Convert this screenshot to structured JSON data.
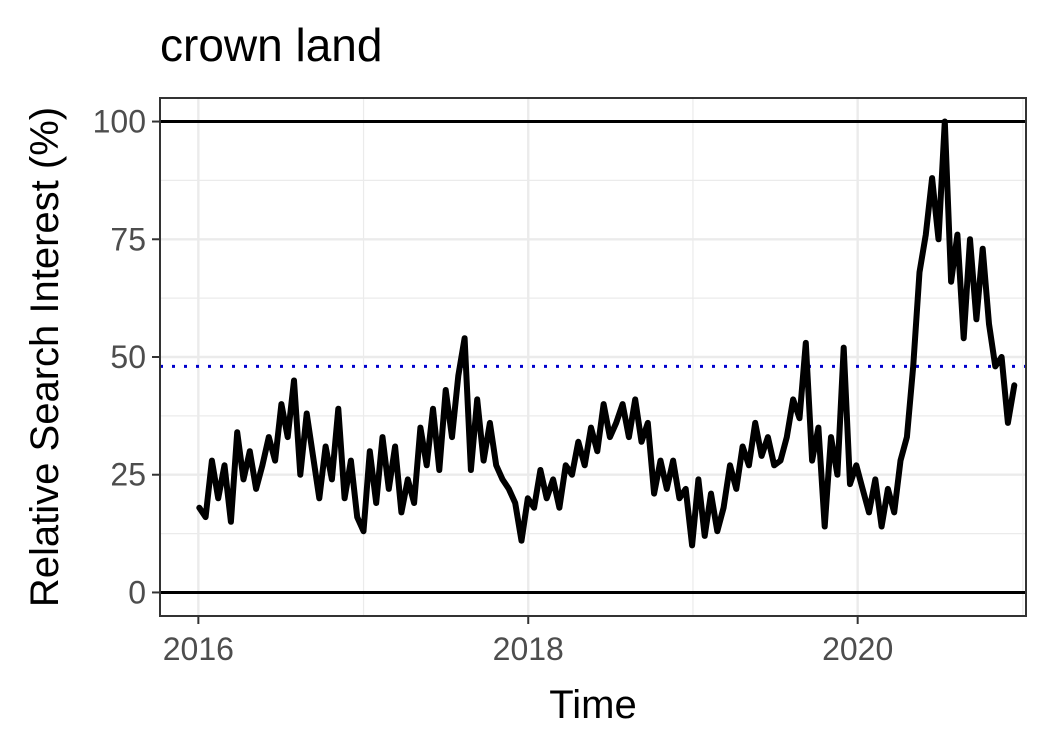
{
  "chart_data": {
    "type": "line",
    "title": "crown land",
    "xlabel": "Time",
    "ylabel": "Relative Search Interest (%)",
    "xlim": [
      "2015-10-08",
      "2021-01-08"
    ],
    "ylim": [
      -5,
      105
    ],
    "x_ticks": [
      "2016",
      "2018",
      "2020"
    ],
    "y_ticks": [
      0,
      25,
      50,
      75,
      100
    ],
    "grid": true,
    "reference_lines": [
      {
        "kind": "hline",
        "y": 0,
        "style": "solid",
        "color": "#000000"
      },
      {
        "kind": "hline",
        "y": 100,
        "style": "solid",
        "color": "#000000"
      },
      {
        "kind": "hline",
        "y": 48,
        "style": "dotted",
        "color": "#0000cc"
      }
    ],
    "series": [
      {
        "color": "#000000",
        "points": [
          [
            "2016-01-03",
            18
          ],
          [
            "2016-01-17",
            16
          ],
          [
            "2016-01-31",
            28
          ],
          [
            "2016-02-14",
            20
          ],
          [
            "2016-02-28",
            27
          ],
          [
            "2016-03-13",
            15
          ],
          [
            "2016-03-27",
            34
          ],
          [
            "2016-04-10",
            24
          ],
          [
            "2016-04-24",
            30
          ],
          [
            "2016-05-08",
            22
          ],
          [
            "2016-05-22",
            27
          ],
          [
            "2016-06-05",
            33
          ],
          [
            "2016-06-19",
            28
          ],
          [
            "2016-07-03",
            40
          ],
          [
            "2016-07-17",
            33
          ],
          [
            "2016-07-31",
            45
          ],
          [
            "2016-08-14",
            25
          ],
          [
            "2016-08-28",
            38
          ],
          [
            "2016-09-11",
            29
          ],
          [
            "2016-09-25",
            20
          ],
          [
            "2016-10-09",
            31
          ],
          [
            "2016-10-23",
            24
          ],
          [
            "2016-11-06",
            39
          ],
          [
            "2016-11-20",
            20
          ],
          [
            "2016-12-04",
            28
          ],
          [
            "2016-12-18",
            16
          ],
          [
            "2017-01-01",
            13
          ],
          [
            "2017-01-15",
            30
          ],
          [
            "2017-01-29",
            19
          ],
          [
            "2017-02-12",
            33
          ],
          [
            "2017-02-26",
            22
          ],
          [
            "2017-03-12",
            31
          ],
          [
            "2017-03-26",
            17
          ],
          [
            "2017-04-09",
            24
          ],
          [
            "2017-04-23",
            19
          ],
          [
            "2017-05-07",
            35
          ],
          [
            "2017-05-21",
            27
          ],
          [
            "2017-06-04",
            39
          ],
          [
            "2017-06-18",
            26
          ],
          [
            "2017-07-02",
            43
          ],
          [
            "2017-07-16",
            33
          ],
          [
            "2017-07-30",
            46
          ],
          [
            "2017-08-13",
            54
          ],
          [
            "2017-08-27",
            26
          ],
          [
            "2017-09-10",
            41
          ],
          [
            "2017-09-24",
            28
          ],
          [
            "2017-10-08",
            36
          ],
          [
            "2017-10-22",
            27
          ],
          [
            "2017-11-05",
            24
          ],
          [
            "2017-11-19",
            22
          ],
          [
            "2017-12-03",
            19
          ],
          [
            "2017-12-17",
            11
          ],
          [
            "2017-12-31",
            20
          ],
          [
            "2018-01-14",
            18
          ],
          [
            "2018-01-28",
            26
          ],
          [
            "2018-02-11",
            20
          ],
          [
            "2018-02-25",
            24
          ],
          [
            "2018-03-11",
            18
          ],
          [
            "2018-03-25",
            27
          ],
          [
            "2018-04-08",
            25
          ],
          [
            "2018-04-22",
            32
          ],
          [
            "2018-05-06",
            27
          ],
          [
            "2018-05-20",
            35
          ],
          [
            "2018-06-03",
            30
          ],
          [
            "2018-06-17",
            40
          ],
          [
            "2018-07-01",
            33
          ],
          [
            "2018-07-15",
            36
          ],
          [
            "2018-07-29",
            40
          ],
          [
            "2018-08-12",
            33
          ],
          [
            "2018-08-26",
            41
          ],
          [
            "2018-09-09",
            32
          ],
          [
            "2018-09-23",
            36
          ],
          [
            "2018-10-07",
            21
          ],
          [
            "2018-10-21",
            28
          ],
          [
            "2018-11-04",
            22
          ],
          [
            "2018-11-18",
            28
          ],
          [
            "2018-12-02",
            20
          ],
          [
            "2018-12-16",
            22
          ],
          [
            "2018-12-30",
            10
          ],
          [
            "2019-01-13",
            24
          ],
          [
            "2019-01-27",
            12
          ],
          [
            "2019-02-10",
            21
          ],
          [
            "2019-02-24",
            13
          ],
          [
            "2019-03-10",
            18
          ],
          [
            "2019-03-24",
            27
          ],
          [
            "2019-04-07",
            22
          ],
          [
            "2019-04-21",
            31
          ],
          [
            "2019-05-05",
            27
          ],
          [
            "2019-05-19",
            36
          ],
          [
            "2019-06-02",
            29
          ],
          [
            "2019-06-16",
            33
          ],
          [
            "2019-06-30",
            27
          ],
          [
            "2019-07-14",
            28
          ],
          [
            "2019-07-28",
            33
          ],
          [
            "2019-08-11",
            41
          ],
          [
            "2019-08-25",
            37
          ],
          [
            "2019-09-08",
            53
          ],
          [
            "2019-09-22",
            28
          ],
          [
            "2019-10-06",
            35
          ],
          [
            "2019-10-20",
            14
          ],
          [
            "2019-11-03",
            33
          ],
          [
            "2019-11-17",
            25
          ],
          [
            "2019-12-01",
            52
          ],
          [
            "2019-12-15",
            23
          ],
          [
            "2019-12-29",
            27
          ],
          [
            "2020-01-12",
            22
          ],
          [
            "2020-01-26",
            17
          ],
          [
            "2020-02-09",
            24
          ],
          [
            "2020-02-23",
            14
          ],
          [
            "2020-03-08",
            22
          ],
          [
            "2020-03-22",
            17
          ],
          [
            "2020-04-05",
            28
          ],
          [
            "2020-04-19",
            33
          ],
          [
            "2020-05-03",
            48
          ],
          [
            "2020-05-17",
            68
          ],
          [
            "2020-05-31",
            76
          ],
          [
            "2020-06-14",
            88
          ],
          [
            "2020-06-28",
            75
          ],
          [
            "2020-07-12",
            100
          ],
          [
            "2020-07-26",
            66
          ],
          [
            "2020-08-09",
            76
          ],
          [
            "2020-08-23",
            54
          ],
          [
            "2020-09-06",
            75
          ],
          [
            "2020-09-20",
            58
          ],
          [
            "2020-10-04",
            73
          ],
          [
            "2020-10-18",
            57
          ],
          [
            "2020-11-01",
            48
          ],
          [
            "2020-11-15",
            50
          ],
          [
            "2020-11-29",
            36
          ],
          [
            "2020-12-13",
            44
          ]
        ]
      }
    ]
  }
}
